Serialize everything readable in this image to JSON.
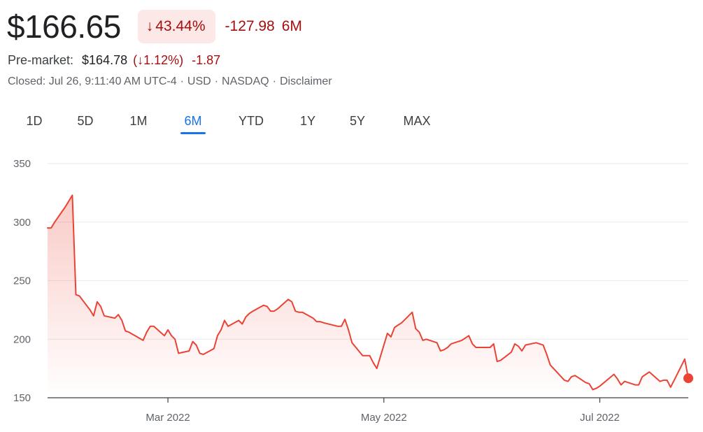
{
  "header": {
    "price": "$166.65",
    "change_arrow": "↓",
    "change_pct": "43.44%",
    "change_abs": "-127.98",
    "change_period": "6M"
  },
  "premarket": {
    "label": "Pre-market:",
    "price": "$164.78",
    "pct": "(↓1.12%)",
    "abs": "-1.87"
  },
  "meta": {
    "status": "Closed: Jul 26, 9:11:40 AM UTC-4",
    "currency": "USD",
    "exchange": "NASDAQ",
    "disclaimer": "Disclaimer"
  },
  "ranges": [
    "1D",
    "5D",
    "1M",
    "6M",
    "YTD",
    "1Y",
    "5Y",
    "MAX"
  ],
  "active_range": "6M",
  "colors": {
    "line": "#ea4335",
    "negative": "#a50e0e",
    "badge_bg": "#fce8e6",
    "accent": "#1a73e8"
  },
  "chart_data": {
    "type": "area",
    "title": "",
    "xlabel": "",
    "ylabel": "",
    "ylim": [
      150,
      350
    ],
    "yticks": [
      150,
      200,
      250,
      300,
      350
    ],
    "xticks": [
      {
        "label": "Mar 2022",
        "date": "2022-03-01"
      },
      {
        "label": "May 2022",
        "date": "2022-05-01"
      },
      {
        "label": "Jul 2022",
        "date": "2022-07-01"
      }
    ],
    "xlim": [
      "2022-01-26",
      "2022-07-26"
    ],
    "grid": true,
    "series": [
      {
        "values": [
          [
            "2022-01-26",
            295
          ],
          [
            "2022-01-27",
            295
          ],
          [
            "2022-01-28",
            300
          ],
          [
            "2022-01-31",
            313
          ],
          [
            "2022-02-01",
            318
          ],
          [
            "2022-02-02",
            323
          ],
          [
            "2022-02-03",
            238
          ],
          [
            "2022-02-04",
            237
          ],
          [
            "2022-02-07",
            225
          ],
          [
            "2022-02-08",
            220
          ],
          [
            "2022-02-09",
            232
          ],
          [
            "2022-02-10",
            228
          ],
          [
            "2022-02-11",
            220
          ],
          [
            "2022-02-14",
            218
          ],
          [
            "2022-02-15",
            221
          ],
          [
            "2022-02-16",
            216
          ],
          [
            "2022-02-17",
            207
          ],
          [
            "2022-02-18",
            206
          ],
          [
            "2022-02-22",
            199
          ],
          [
            "2022-02-23",
            206
          ],
          [
            "2022-02-24",
            211
          ],
          [
            "2022-02-25",
            211
          ],
          [
            "2022-02-28",
            203
          ],
          [
            "2022-03-01",
            208
          ],
          [
            "2022-03-02",
            203
          ],
          [
            "2022-03-03",
            200
          ],
          [
            "2022-03-04",
            188
          ],
          [
            "2022-03-07",
            190
          ],
          [
            "2022-03-08",
            198
          ],
          [
            "2022-03-09",
            195
          ],
          [
            "2022-03-10",
            188
          ],
          [
            "2022-03-11",
            187
          ],
          [
            "2022-03-14",
            192
          ],
          [
            "2022-03-15",
            203
          ],
          [
            "2022-03-16",
            208
          ],
          [
            "2022-03-17",
            216
          ],
          [
            "2022-03-18",
            211
          ],
          [
            "2022-03-21",
            216
          ],
          [
            "2022-03-22",
            213
          ],
          [
            "2022-03-23",
            219
          ],
          [
            "2022-03-24",
            222
          ],
          [
            "2022-03-25",
            224
          ],
          [
            "2022-03-28",
            229
          ],
          [
            "2022-03-29",
            228
          ],
          [
            "2022-03-30",
            224
          ],
          [
            "2022-03-31",
            224
          ],
          [
            "2022-04-01",
            226
          ],
          [
            "2022-04-04",
            234
          ],
          [
            "2022-04-05",
            232
          ],
          [
            "2022-04-06",
            224
          ],
          [
            "2022-04-07",
            223
          ],
          [
            "2022-04-08",
            223
          ],
          [
            "2022-04-11",
            218
          ],
          [
            "2022-04-12",
            215
          ],
          [
            "2022-04-13",
            215
          ],
          [
            "2022-04-14",
            214
          ],
          [
            "2022-04-18",
            211
          ],
          [
            "2022-04-19",
            211
          ],
          [
            "2022-04-20",
            217
          ],
          [
            "2022-04-21",
            208
          ],
          [
            "2022-04-22",
            197
          ],
          [
            "2022-04-25",
            186
          ],
          [
            "2022-04-26",
            186
          ],
          [
            "2022-04-27",
            186
          ],
          [
            "2022-04-28",
            180
          ],
          [
            "2022-04-29",
            175
          ],
          [
            "2022-05-02",
            205
          ],
          [
            "2022-05-03",
            202
          ],
          [
            "2022-05-04",
            210
          ],
          [
            "2022-05-05",
            212
          ],
          [
            "2022-05-06",
            214
          ],
          [
            "2022-05-09",
            223
          ],
          [
            "2022-05-10",
            209
          ],
          [
            "2022-05-11",
            206
          ],
          [
            "2022-05-12",
            199
          ],
          [
            "2022-05-13",
            200
          ],
          [
            "2022-05-16",
            197
          ],
          [
            "2022-05-17",
            190
          ],
          [
            "2022-05-18",
            191
          ],
          [
            "2022-05-19",
            193
          ],
          [
            "2022-05-20",
            196
          ],
          [
            "2022-05-23",
            199
          ],
          [
            "2022-05-24",
            201
          ],
          [
            "2022-05-25",
            203
          ],
          [
            "2022-05-26",
            196
          ],
          [
            "2022-05-27",
            193
          ],
          [
            "2022-05-31",
            193
          ],
          [
            "2022-06-01",
            196
          ],
          [
            "2022-06-02",
            181
          ],
          [
            "2022-06-03",
            182
          ],
          [
            "2022-06-06",
            189
          ],
          [
            "2022-06-07",
            196
          ],
          [
            "2022-06-08",
            194
          ],
          [
            "2022-06-09",
            190
          ],
          [
            "2022-06-10",
            195
          ],
          [
            "2022-06-13",
            197
          ],
          [
            "2022-06-14",
            196
          ],
          [
            "2022-06-15",
            195
          ],
          [
            "2022-06-16",
            187
          ],
          [
            "2022-06-17",
            178
          ],
          [
            "2022-06-21",
            165
          ],
          [
            "2022-06-22",
            164
          ],
          [
            "2022-06-23",
            168
          ],
          [
            "2022-06-24",
            169
          ],
          [
            "2022-06-27",
            163
          ],
          [
            "2022-06-28",
            162
          ],
          [
            "2022-06-29",
            157
          ],
          [
            "2022-06-30",
            158
          ],
          [
            "2022-07-01",
            160
          ],
          [
            "2022-07-05",
            170
          ],
          [
            "2022-07-06",
            166
          ],
          [
            "2022-07-07",
            161
          ],
          [
            "2022-07-08",
            164
          ],
          [
            "2022-07-11",
            161
          ],
          [
            "2022-07-12",
            161
          ],
          [
            "2022-07-13",
            168
          ],
          [
            "2022-07-14",
            170
          ],
          [
            "2022-07-15",
            172
          ],
          [
            "2022-07-18",
            164
          ],
          [
            "2022-07-19",
            165
          ],
          [
            "2022-07-20",
            165
          ],
          [
            "2022-07-21",
            159
          ],
          [
            "2022-07-22",
            165
          ],
          [
            "2022-07-25",
            183
          ],
          [
            "2022-07-26",
            166.65
          ]
        ]
      }
    ]
  }
}
